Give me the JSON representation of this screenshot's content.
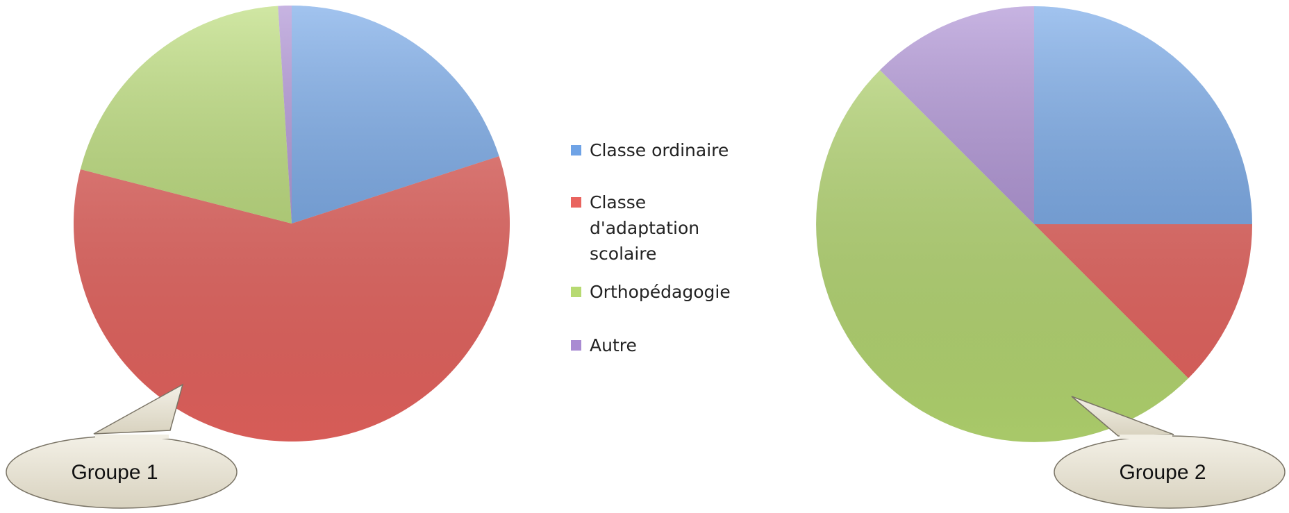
{
  "chart_data": [
    {
      "type": "pie",
      "annotation": "Groupe 1",
      "categories": [
        "Classe ordinaire",
        "Classe d'adaptation scolaire",
        "Orthopédagogie",
        "Autre"
      ],
      "values": [
        20,
        59,
        20,
        1
      ],
      "colors": [
        "#6fa3e6",
        "#e9645f",
        "#b7da72",
        "#a98bd2"
      ],
      "legend": "center"
    },
    {
      "type": "pie",
      "annotation": "Groupe 2",
      "categories": [
        "Classe ordinaire",
        "Classe d'adaptation scolaire",
        "Orthopédagogie",
        "Autre"
      ],
      "values": [
        25,
        12.5,
        50,
        12.5
      ],
      "colors": [
        "#6fa3e6",
        "#e9645f",
        "#b7da72",
        "#a98bd2"
      ]
    }
  ]
}
